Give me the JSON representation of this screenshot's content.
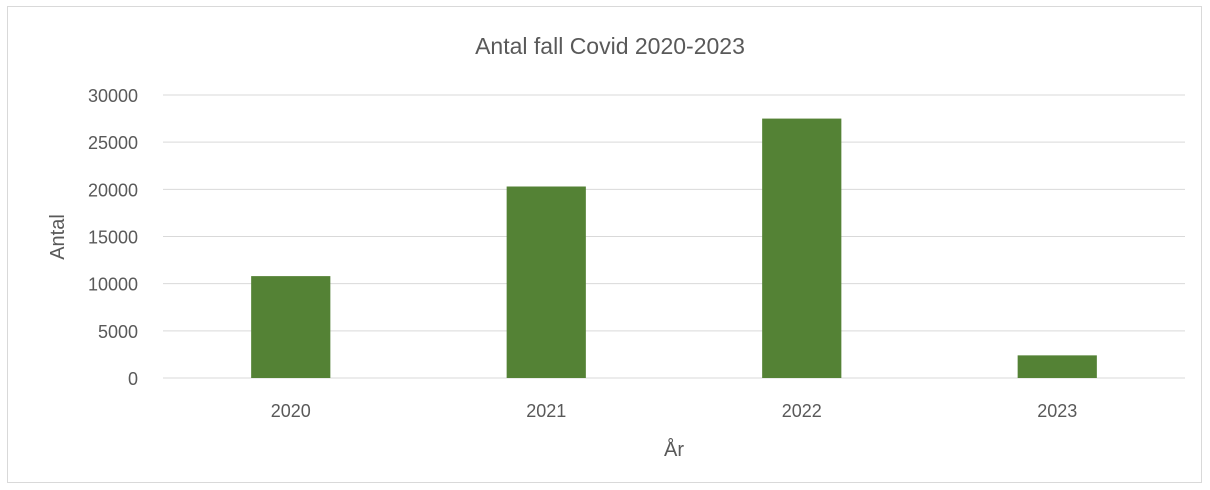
{
  "chart_data": {
    "type": "bar",
    "title": "Antal fall Covid 2020-2023",
    "xlabel": "År",
    "ylabel": "Antal",
    "categories": [
      "2020",
      "2021",
      "2022",
      "2023"
    ],
    "series": [
      {
        "values": [
          10800,
          20300,
          27500,
          2400
        ]
      }
    ],
    "ylim": [
      0,
      30000
    ],
    "yticks": [
      0,
      5000,
      10000,
      15000,
      20000,
      25000,
      30000
    ],
    "ytick_labels": [
      "0",
      "5000",
      "10000",
      "15000",
      "20000",
      "25000",
      "30000"
    ],
    "grid": true,
    "legend": "none",
    "colors": {
      "bar": "#548235",
      "grid": "#d9d9d9",
      "text": "#595959"
    }
  }
}
